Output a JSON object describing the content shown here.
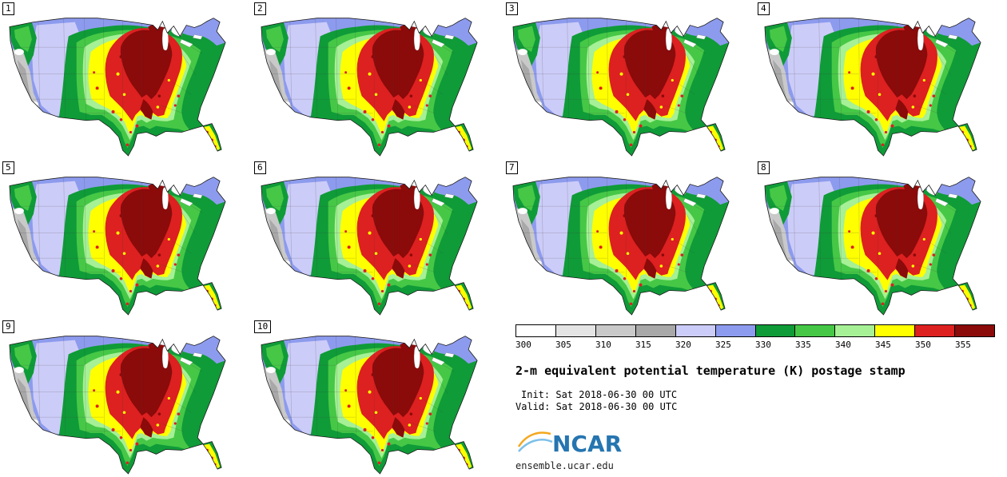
{
  "product": {
    "title": "2-m equivalent potential temperature (K) postage stamp",
    "init_line": "Init: Sat 2018-06-30 00 UTC",
    "valid_line": "Valid: Sat 2018-06-30 00 UTC",
    "site": "ensemble.ucar.edu",
    "logo_text": "NCAR"
  },
  "panels": [
    {
      "label": "1"
    },
    {
      "label": "2"
    },
    {
      "label": "3"
    },
    {
      "label": "4"
    },
    {
      "label": "5"
    },
    {
      "label": "6"
    },
    {
      "label": "7"
    },
    {
      "label": "8"
    },
    {
      "label": "9"
    },
    {
      "label": "10"
    }
  ],
  "legend": {
    "colorbar": {
      "units": "K",
      "ticks": [
        "300",
        "305",
        "310",
        "315",
        "320",
        "325",
        "330",
        "335",
        "340",
        "345",
        "350",
        "355"
      ],
      "colors": [
        "#ffffff",
        "#e4e4e4",
        "#c9c9c9",
        "#a8a8a8",
        "#ccccf8",
        "#8d9bee",
        "#0f9b38",
        "#46c846",
        "#a6f096",
        "#ffff00",
        "#dd2020",
        "#8b0a0a"
      ]
    }
  }
}
